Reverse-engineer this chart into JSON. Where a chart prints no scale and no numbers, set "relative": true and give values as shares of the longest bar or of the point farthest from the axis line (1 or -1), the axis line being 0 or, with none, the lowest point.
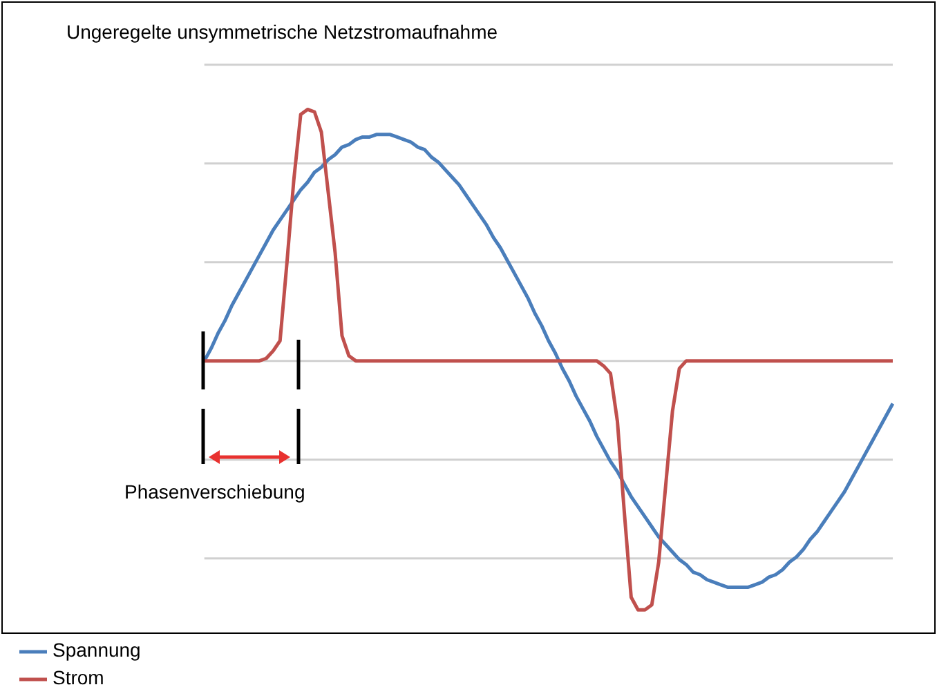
{
  "chart_data": {
    "type": "line",
    "title": "Ungeregelte unsymmetrische Netzstromaufnahme",
    "relative": true,
    "grid": "y",
    "legend": "bottom left",
    "marker": "none",
    "line_style": "solid",
    "annotations": [
      "Phasenverschiebung"
    ],
    "categories": [
      null,
      null,
      null,
      null,
      null,
      null,
      null,
      null,
      null,
      null,
      null,
      null,
      null,
      null,
      null,
      null,
      null,
      null,
      null,
      null,
      null,
      null,
      null,
      null,
      null,
      null,
      null,
      null,
      null,
      null,
      null,
      null,
      null,
      null,
      null,
      null,
      null,
      null,
      null,
      null,
      null,
      null,
      null,
      null,
      null,
      null,
      null,
      null,
      null,
      null,
      null,
      null,
      null,
      null,
      null,
      null,
      null,
      null,
      null,
      null,
      null,
      null,
      null,
      null,
      null,
      null,
      null,
      null,
      null,
      null,
      null,
      null,
      null,
      null,
      null,
      null,
      null,
      null,
      null,
      null,
      null,
      null,
      null,
      null,
      null,
      null,
      null,
      null,
      null,
      null,
      null,
      null,
      null,
      null,
      null,
      null,
      null,
      null,
      null,
      null,
      null
    ],
    "series": [
      {
        "name": "Spannung",
        "color": "#4a7ebb",
        "values": [
          0,
          0.05,
          0.11,
          0.16,
          0.22,
          0.27,
          0.32,
          0.37,
          0.42,
          0.47,
          0.52,
          0.56,
          0.6,
          0.64,
          0.68,
          0.71,
          0.75,
          0.77,
          0.8,
          0.82,
          0.85,
          0.86,
          0.88,
          0.89,
          0.89,
          0.9,
          0.9,
          0.9,
          0.89,
          0.88,
          0.87,
          0.85,
          0.84,
          0.81,
          0.79,
          0.76,
          0.73,
          0.7,
          0.66,
          0.62,
          0.58,
          0.54,
          0.49,
          0.45,
          0.4,
          0.35,
          0.3,
          0.25,
          0.19,
          0.14,
          0.08,
          0.03,
          -0.03,
          -0.08,
          -0.14,
          -0.19,
          -0.24,
          -0.3,
          -0.35,
          -0.4,
          -0.44,
          -0.49,
          -0.54,
          -0.58,
          -0.62,
          -0.66,
          -0.7,
          -0.73,
          -0.76,
          -0.79,
          -0.81,
          -0.84,
          -0.85,
          -0.87,
          -0.88,
          -0.89,
          -0.9,
          -0.9,
          -0.9,
          -0.9,
          -0.89,
          -0.88,
          -0.86,
          -0.85,
          -0.83,
          -0.8,
          -0.78,
          -0.75,
          -0.71,
          -0.68,
          -0.64,
          -0.6,
          -0.56,
          -0.52,
          -0.47,
          -0.42,
          -0.37,
          -0.32,
          -0.27,
          -0.22,
          -0.17
        ]
      },
      {
        "name": "Strom",
        "color": "#c0504d",
        "values": [
          0,
          0,
          0,
          0,
          0,
          0,
          0,
          0,
          0,
          0.01,
          0.04,
          0.08,
          0.39,
          0.72,
          0.98,
          1.0,
          0.99,
          0.91,
          0.67,
          0.43,
          0.1,
          0.02,
          0,
          0,
          0,
          0,
          0,
          0,
          0,
          0,
          0,
          0,
          0,
          0,
          0,
          0,
          0,
          0,
          0,
          0,
          0,
          0,
          0,
          0,
          0,
          0,
          0,
          0,
          0,
          0,
          0,
          0,
          0,
          0,
          0,
          0,
          0,
          0,
          -0.02,
          -0.05,
          -0.24,
          -0.6,
          -0.94,
          -0.99,
          -0.99,
          -0.97,
          -0.8,
          -0.5,
          -0.2,
          -0.03,
          0,
          0,
          0,
          0,
          0,
          0,
          0,
          0,
          0,
          0,
          0,
          0,
          0,
          0,
          0,
          0,
          0,
          0,
          0,
          0,
          0,
          0,
          0,
          0,
          0,
          0,
          0,
          0,
          0,
          0,
          0
        ]
      }
    ]
  }
}
